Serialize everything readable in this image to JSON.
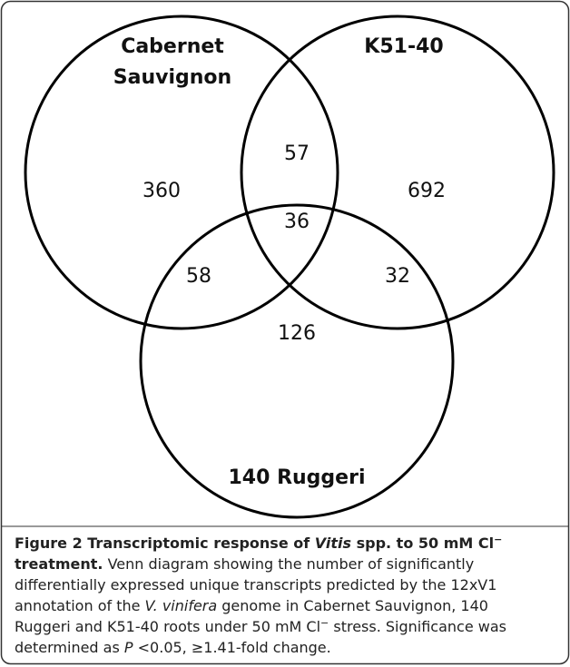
{
  "figure": {
    "sets": [
      {
        "label_lines": [
          "Cabernet",
          "Sauvignon"
        ]
      },
      {
        "label_lines": [
          "K51-40"
        ]
      },
      {
        "label_lines": [
          "140 Ruggeri"
        ]
      }
    ],
    "regions": {
      "cabernet_only": "360",
      "k51_only": "692",
      "ruggeri_only": "126",
      "cabernet_k51": "57",
      "cabernet_ruggeri": "58",
      "k51_ruggeri": "32",
      "all": "36"
    },
    "caption": {
      "lines": [
        [
          {
            "text": "Figure 2 Transcriptomic response of ",
            "style": "bold"
          },
          {
            "text": "Vitis",
            "style": "bold italic"
          },
          {
            "text": " spp. to 50 mM Cl",
            "style": "bold"
          },
          {
            "text": "−",
            "style": "bold sup"
          }
        ],
        [
          {
            "text": "treatment.",
            "style": "bold"
          },
          {
            "text": " Venn diagram showing the number of significantly",
            "style": "normal"
          }
        ],
        [
          {
            "text": "differentially expressed unique transcripts predicted by the 12xV1",
            "style": "normal"
          }
        ],
        [
          {
            "text": "annotation of the ",
            "style": "normal"
          },
          {
            "text": "V. vinifera",
            "style": "italic"
          },
          {
            "text": " genome in Cabernet Sauvignon, 140",
            "style": "normal"
          }
        ],
        [
          {
            "text": "Ruggeri and K51-40 roots under 50 mM Cl",
            "style": "normal"
          },
          {
            "text": "−",
            "style": "sup"
          },
          {
            "text": " stress. Significance was",
            "style": "normal"
          }
        ],
        [
          {
            "text": "determined as ",
            "style": "normal"
          },
          {
            "text": "P",
            "style": "italic"
          },
          {
            "text": " <0.05, ≥1.41-fold change.",
            "style": "normal"
          }
        ]
      ]
    }
  }
}
